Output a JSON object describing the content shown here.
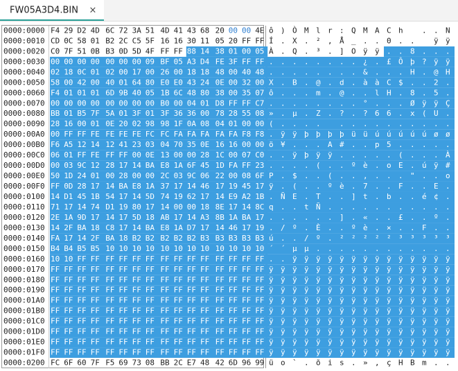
{
  "tab": {
    "title": "FW05A3D4.BIN"
  },
  "selection": {
    "start": 42,
    "end": 511
  },
  "rows": [
    {
      "offset": "0000:0000",
      "bytes": [
        "F4",
        "29",
        "D2",
        "4D",
        "6C",
        "72",
        "3A",
        "51",
        "4D",
        "41",
        "43",
        "68",
        "20",
        "00",
        "00",
        "4E"
      ],
      "ascii": "ô)ÒMlr:QMACh ..N"
    },
    {
      "offset": "0000:0010",
      "bytes": [
        "CD",
        "0C",
        "58",
        "01",
        "B2",
        "2C",
        "C5",
        "5F",
        "16",
        "16",
        "30",
        "11",
        "05",
        "20",
        "FF",
        "FF"
      ],
      "ascii": "Í.X.²,Å_..0.. ÿÿ"
    },
    {
      "offset": "0000:0020",
      "bytes": [
        "C0",
        "7F",
        "51",
        "0B",
        "B3",
        "0D",
        "5D",
        "4F",
        "FF",
        "FF",
        "88",
        "14",
        "38",
        "01",
        "00",
        "05"
      ],
      "ascii": "À.Q.³.]Oÿÿ..8..."
    },
    {
      "offset": "0000:0030",
      "bytes": [
        "00",
        "00",
        "00",
        "00",
        "00",
        "00",
        "00",
        "09",
        "BF",
        "05",
        "A3",
        "D4",
        "FE",
        "3F",
        "FF",
        "FF"
      ],
      "ascii": "........¿.£Ôþ?ÿÿ"
    },
    {
      "offset": "0000:0040",
      "bytes": [
        "02",
        "18",
        "0C",
        "01",
        "02",
        "00",
        "17",
        "00",
        "26",
        "00",
        "18",
        "18",
        "48",
        "00",
        "40",
        "48"
      ],
      "ascii": "........&...H.@H"
    },
    {
      "offset": "0000:0050",
      "bytes": [
        "58",
        "00",
        "42",
        "00",
        "40",
        "01",
        "64",
        "80",
        "E0",
        "E0",
        "43",
        "24",
        "0E",
        "00",
        "32",
        "00"
      ],
      "ascii": "X.B.@.d.ààC$..2."
    },
    {
      "offset": "0000:0060",
      "bytes": [
        "F4",
        "01",
        "01",
        "01",
        "6D",
        "9B",
        "40",
        "05",
        "1B",
        "6C",
        "48",
        "80",
        "38",
        "00",
        "35",
        "07"
      ],
      "ascii": "ô...m.@..lH.8.5."
    },
    {
      "offset": "0000:0070",
      "bytes": [
        "00",
        "00",
        "00",
        "00",
        "00",
        "00",
        "00",
        "00",
        "B0",
        "00",
        "04",
        "01",
        "D8",
        "FF",
        "FF",
        "C7"
      ],
      "ascii": "........°...ØÿÿÇ"
    },
    {
      "offset": "0000:0080",
      "bytes": [
        "BB",
        "01",
        "B5",
        "7F",
        "5A",
        "01",
        "3F",
        "01",
        "3F",
        "36",
        "36",
        "00",
        "78",
        "28",
        "55",
        "08"
      ],
      "ascii": "».µ.Z.?.?66.x(U."
    },
    {
      "offset": "0000:0090",
      "bytes": [
        "28",
        "16",
        "00",
        "01",
        "0E",
        "20",
        "02",
        "98",
        "98",
        "1F",
        "0A",
        "08",
        "04",
        "01",
        "00",
        "00"
      ],
      "ascii": "(.... .........."
    },
    {
      "offset": "0000:00A0",
      "bytes": [
        "00",
        "FF",
        "FF",
        "FE",
        "FE",
        "FE",
        "FE",
        "FC",
        "FC",
        "FA",
        "FA",
        "FA",
        "FA",
        "FA",
        "F8",
        "F8"
      ],
      "ascii": ".ÿÿþþþþüüúúúúúøø"
    },
    {
      "offset": "0000:00B0",
      "bytes": [
        "F6",
        "A5",
        "12",
        "14",
        "12",
        "41",
        "23",
        "03",
        "04",
        "70",
        "35",
        "0E",
        "16",
        "16",
        "00",
        "00"
      ],
      "ascii": "ö¥...A#..p5....."
    },
    {
      "offset": "0000:00C0",
      "bytes": [
        "06",
        "01",
        "FF",
        "FE",
        "FF",
        "FF",
        "00",
        "0E",
        "13",
        "00",
        "00",
        "28",
        "1C",
        "00",
        "07",
        "C0"
      ],
      "ascii": "..ÿþÿÿ.....(...À"
    },
    {
      "offset": "0000:00D0",
      "bytes": [
        "00",
        "03",
        "9C",
        "12",
        "28",
        "17",
        "14",
        "BA",
        "E8",
        "1A",
        "6F",
        "45",
        "1D",
        "FA",
        "FF",
        "23"
      ],
      "ascii": "....(..ºè.oE.úÿ#"
    },
    {
      "offset": "0000:00E0",
      "bytes": [
        "50",
        "1D",
        "24",
        "01",
        "00",
        "28",
        "00",
        "00",
        "2C",
        "03",
        "9C",
        "06",
        "22",
        "00",
        "08",
        "6F"
      ],
      "ascii": "P.$..(..,...\"..o"
    },
    {
      "offset": "0000:00F0",
      "bytes": [
        "FF",
        "0D",
        "28",
        "17",
        "14",
        "BA",
        "E8",
        "1A",
        "37",
        "17",
        "14",
        "46",
        "17",
        "19",
        "45",
        "17"
      ],
      "ascii": "ÿ.(..ºè.7..F..E."
    },
    {
      "offset": "0000:0100",
      "bytes": [
        "14",
        "D1",
        "45",
        "1B",
        "54",
        "17",
        "14",
        "5D",
        "74",
        "19",
        "62",
        "17",
        "14",
        "E9",
        "A2",
        "1B"
      ],
      "ascii": ".ÑE.T..]t.b..é¢."
    },
    {
      "offset": "0000:0110",
      "bytes": [
        "71",
        "17",
        "14",
        "74",
        "D1",
        "19",
        "80",
        "17",
        "14",
        "00",
        "00",
        "18",
        "8E",
        "17",
        "14",
        "8C"
      ],
      "ascii": "q..tÑ..........."
    },
    {
      "offset": "0000:0120",
      "bytes": [
        "2E",
        "1A",
        "9D",
        "17",
        "14",
        "17",
        "5D",
        "18",
        "AB",
        "17",
        "14",
        "A3",
        "8B",
        "1A",
        "BA",
        "17"
      ],
      "ascii": "......].«..£..º."
    },
    {
      "offset": "0000:0130",
      "bytes": [
        "14",
        "2F",
        "BA",
        "18",
        "C8",
        "17",
        "14",
        "BA",
        "E8",
        "1A",
        "D7",
        "17",
        "14",
        "46",
        "17",
        "19"
      ],
      "ascii": "./º.È..ºè.×..F.."
    },
    {
      "offset": "0000:0140",
      "bytes": [
        "FA",
        "17",
        "14",
        "2F",
        "BA",
        "18",
        "B2",
        "B2",
        "B2",
        "B2",
        "B2",
        "B3",
        "B3",
        "B3",
        "B3",
        "B3"
      ],
      "ascii": "ú../º.²²²²²³³³³³"
    },
    {
      "offset": "0000:0150",
      "bytes": [
        "B4",
        "B4",
        "B5",
        "B5",
        "10",
        "10",
        "10",
        "10",
        "10",
        "10",
        "10",
        "10",
        "10",
        "10",
        "10",
        "10"
      ],
      "ascii": "´´µµ............"
    },
    {
      "offset": "0000:0160",
      "bytes": [
        "10",
        "10",
        "FF",
        "FF",
        "FF",
        "FF",
        "FF",
        "FF",
        "FF",
        "FF",
        "FF",
        "FF",
        "FF",
        "FF",
        "FF",
        "FF"
      ],
      "ascii": "..ÿÿÿÿÿÿÿÿÿÿÿÿÿÿ"
    },
    {
      "offset": "0000:0170",
      "bytes": [
        "FF",
        "FF",
        "FF",
        "FF",
        "FF",
        "FF",
        "FF",
        "FF",
        "FF",
        "FF",
        "FF",
        "FF",
        "FF",
        "FF",
        "FF",
        "FF"
      ],
      "ascii": "ÿÿÿÿÿÿÿÿÿÿÿÿÿÿÿÿ"
    },
    {
      "offset": "0000:0180",
      "bytes": [
        "FF",
        "FF",
        "FF",
        "FF",
        "FF",
        "FF",
        "FF",
        "FF",
        "FF",
        "FF",
        "FF",
        "FF",
        "FF",
        "FF",
        "FF",
        "FF"
      ],
      "ascii": "ÿÿÿÿÿÿÿÿÿÿÿÿÿÿÿÿ"
    },
    {
      "offset": "0000:0190",
      "bytes": [
        "FF",
        "FF",
        "FF",
        "FF",
        "FF",
        "FF",
        "FF",
        "FF",
        "FF",
        "FF",
        "FF",
        "FF",
        "FF",
        "FF",
        "FF",
        "FF"
      ],
      "ascii": "ÿÿÿÿÿÿÿÿÿÿÿÿÿÿÿÿ"
    },
    {
      "offset": "0000:01A0",
      "bytes": [
        "FF",
        "FF",
        "FF",
        "FF",
        "FF",
        "FF",
        "FF",
        "FF",
        "FF",
        "FF",
        "FF",
        "FF",
        "FF",
        "FF",
        "FF",
        "FF"
      ],
      "ascii": "ÿÿÿÿÿÿÿÿÿÿÿÿÿÿÿÿ"
    },
    {
      "offset": "0000:01B0",
      "bytes": [
        "FF",
        "FF",
        "FF",
        "FF",
        "FF",
        "FF",
        "FF",
        "FF",
        "FF",
        "FF",
        "FF",
        "FF",
        "FF",
        "FF",
        "FF",
        "FF"
      ],
      "ascii": "ÿÿÿÿÿÿÿÿÿÿÿÿÿÿÿÿ"
    },
    {
      "offset": "0000:01C0",
      "bytes": [
        "FF",
        "FF",
        "FF",
        "FF",
        "FF",
        "FF",
        "FF",
        "FF",
        "FF",
        "FF",
        "FF",
        "FF",
        "FF",
        "FF",
        "FF",
        "FF"
      ],
      "ascii": "ÿÿÿÿÿÿÿÿÿÿÿÿÿÿÿÿ"
    },
    {
      "offset": "0000:01D0",
      "bytes": [
        "FF",
        "FF",
        "FF",
        "FF",
        "FF",
        "FF",
        "FF",
        "FF",
        "FF",
        "FF",
        "FF",
        "FF",
        "FF",
        "FF",
        "FF",
        "FF"
      ],
      "ascii": "ÿÿÿÿÿÿÿÿÿÿÿÿÿÿÿÿ"
    },
    {
      "offset": "0000:01E0",
      "bytes": [
        "FF",
        "FF",
        "FF",
        "FF",
        "FF",
        "FF",
        "FF",
        "FF",
        "FF",
        "FF",
        "FF",
        "FF",
        "FF",
        "FF",
        "FF",
        "FF"
      ],
      "ascii": "ÿÿÿÿÿÿÿÿÿÿÿÿÿÿÿÿ"
    },
    {
      "offset": "0000:01F0",
      "bytes": [
        "FF",
        "FF",
        "FF",
        "FF",
        "FF",
        "FF",
        "FF",
        "FF",
        "FF",
        "FF",
        "FF",
        "FF",
        "FF",
        "FF",
        "FF",
        "FF"
      ],
      "ascii": "ÿÿÿÿÿÿÿÿÿÿÿÿÿÿÿÿ"
    },
    {
      "offset": "0000:0200",
      "bytes": [
        "FC",
        "6F",
        "60",
        "7F",
        "F5",
        "69",
        "73",
        "08",
        "BB",
        "2C",
        "E7",
        "48",
        "42",
        "6D",
        "96",
        "99"
      ],
      "ascii": "üo`.õis.»,çHBm.."
    }
  ]
}
